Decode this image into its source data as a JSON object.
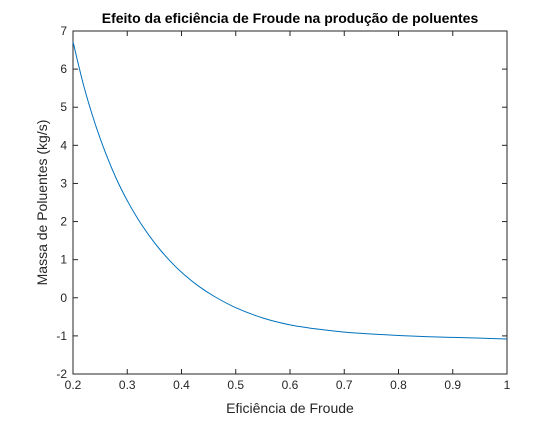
{
  "chart_data": {
    "type": "line",
    "title": "Efeito da eficiência de Froude na produção de poluentes",
    "xlabel": "Eficiência de Froude",
    "ylabel": "Massa de Poluentes (kg/s)",
    "xlim": [
      0.2,
      1.0
    ],
    "ylim": [
      -2,
      7
    ],
    "xticks": [
      0.2,
      0.3,
      0.4,
      0.5,
      0.6,
      0.7,
      0.8,
      0.9,
      1.0
    ],
    "xtick_labels": [
      "0.2",
      "0.3",
      "0.4",
      "0.5",
      "0.6",
      "0.7",
      "0.8",
      "0.9",
      "1"
    ],
    "yticks": [
      -2,
      -1,
      0,
      1,
      2,
      3,
      4,
      5,
      6,
      7
    ],
    "ytick_labels": [
      "-2",
      "-1",
      "0",
      "1",
      "2",
      "3",
      "4",
      "5",
      "6",
      "7"
    ],
    "grid": false,
    "box": true,
    "series": [
      {
        "color": "#0072BD",
        "x": [
          0.2,
          0.22,
          0.24,
          0.26,
          0.28,
          0.3,
          0.32,
          0.34,
          0.36,
          0.38,
          0.4,
          0.43,
          0.46,
          0.5,
          0.55,
          0.6,
          0.65,
          0.7,
          0.75,
          0.8,
          0.85,
          0.9,
          0.95,
          1.0
        ],
        "y": [
          6.72,
          5.55,
          4.6,
          3.8,
          3.12,
          2.55,
          2.06,
          1.64,
          1.27,
          0.95,
          0.67,
          0.32,
          0.04,
          -0.26,
          -0.53,
          -0.71,
          -0.82,
          -0.9,
          -0.95,
          -0.99,
          -1.02,
          -1.04,
          -1.06,
          -1.08
        ]
      }
    ]
  }
}
